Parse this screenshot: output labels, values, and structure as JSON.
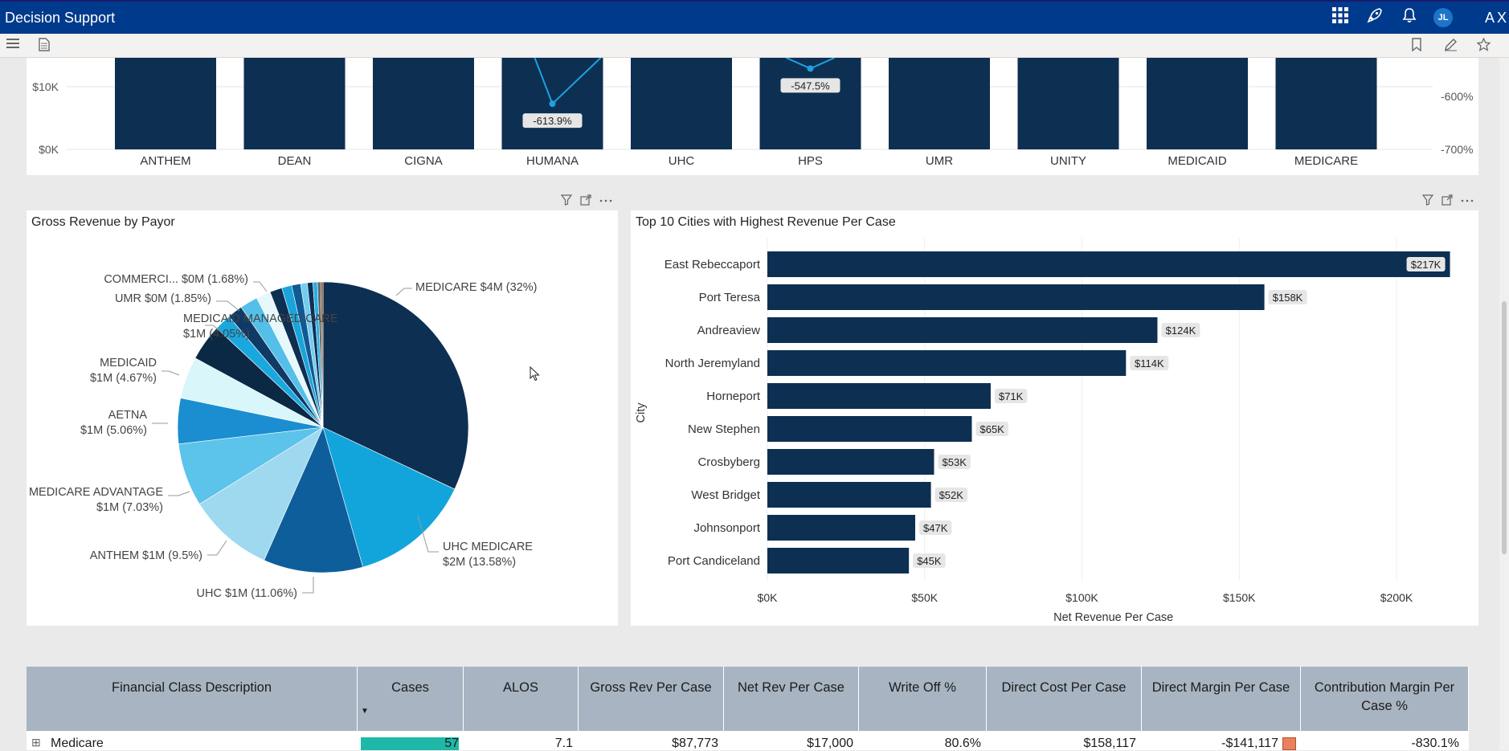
{
  "app": {
    "title": "Decision Support",
    "brand": "AXI",
    "user_initials": "JL"
  },
  "colors": {
    "navy": "#0d2f52",
    "topbar": "#003a8c",
    "accent_line": "#1da1e0",
    "table_header": "#a8b4c2",
    "cases_bar": "#1fb8a8"
  },
  "top_chart": {
    "y_left_ticks": [
      "$10K",
      "$0K"
    ],
    "y_right_ticks": [
      "-600%",
      "-700%"
    ],
    "categories": [
      "ANTHEM",
      "DEAN",
      "CIGNA",
      "HUMANA",
      "UHC",
      "HPS",
      "UMR",
      "UNITY",
      "MEDICAID",
      "MEDICARE"
    ],
    "line_labels": [
      "-613.9%",
      "-547.5%"
    ]
  },
  "pie": {
    "title": "Gross Revenue by Payor",
    "labels": [
      "MEDICARE $4M (32%)",
      "UHC MEDICARE",
      "$2M (13.58%)",
      "UHC $1M (11.06%)",
      "ANTHEM $1M (9.5%)",
      "MEDICARE ADVANTAGE",
      "$1M (7.03%)",
      "AETNA",
      "$1M (5.06%)",
      "MEDICAID",
      "$1M (4.67%)",
      "MEDICAID MANAGED CARE",
      "$1M (4.05%)",
      "UMR $0M (1.85%)",
      "COMMERCI... $0M (1.68%)"
    ]
  },
  "bar": {
    "title": "Top 10 Cities with Highest Revenue Per Case",
    "ylabel": "City",
    "xlabel": "Net Revenue Per Case",
    "x_ticks": [
      "$0K",
      "$50K",
      "$100K",
      "$150K",
      "$200K"
    ],
    "value_labels": [
      "$217K",
      "$158K",
      "$124K",
      "$114K",
      "$71K",
      "$65K",
      "$53K",
      "$52K",
      "$47K",
      "$45K"
    ]
  },
  "chart_data": [
    {
      "type": "bar",
      "title": "",
      "categories": [
        "ANTHEM",
        "DEAN",
        "CIGNA",
        "HUMANA",
        "UHC",
        "HPS",
        "UMR",
        "UNITY",
        "MEDICAID",
        "MEDICARE"
      ],
      "y_left_ticks": [
        "$0K",
        "$10K"
      ],
      "y_right_ticks": [
        "-700%",
        "-600%"
      ],
      "series": [
        {
          "type": "line",
          "points": [
            {
              "category": "HUMANA",
              "value": -613.9
            },
            {
              "category": "HPS",
              "value": -547.5
            }
          ]
        }
      ],
      "note_visible": "bars extend above the visible area"
    },
    {
      "type": "pie",
      "title": "Gross Revenue by Payor",
      "slices": [
        {
          "label": "MEDICARE",
          "value_text": "$4M",
          "percent": 32
        },
        {
          "label": "UHC MEDICARE",
          "value_text": "$2M",
          "percent": 13.58
        },
        {
          "label": "UHC",
          "value_text": "$1M",
          "percent": 11.06
        },
        {
          "label": "ANTHEM",
          "value_text": "$1M",
          "percent": 9.5
        },
        {
          "label": "MEDICARE ADVANTAGE",
          "value_text": "$1M",
          "percent": 7.03
        },
        {
          "label": "AETNA",
          "value_text": "$1M",
          "percent": 5.06
        },
        {
          "label": "MEDICAID",
          "value_text": "$1M",
          "percent": 4.67
        },
        {
          "label": "MEDICAID MANAGED CARE",
          "value_text": "$1M",
          "percent": 4.05
        },
        {
          "label": "UMR",
          "value_text": "$0M",
          "percent": 1.85
        },
        {
          "label": "COMMERCI...",
          "value_text": "$0M",
          "percent": 1.68
        }
      ]
    },
    {
      "type": "bar",
      "orientation": "horizontal",
      "title": "Top 10 Cities with Highest Revenue Per Case",
      "xlabel": "Net Revenue Per Case",
      "ylabel": "City",
      "xlim": [
        0,
        220000
      ],
      "categories": [
        "East Rebeccaport",
        "Port Teresa",
        "Andreaview",
        "North Jeremyland",
        "Horneport",
        "New Stephen",
        "Crosbyberg",
        "West Bridget",
        "Johnsonport",
        "Port Candiceland"
      ],
      "values": [
        217000,
        158000,
        124000,
        114000,
        71000,
        65000,
        53000,
        52000,
        47000,
        45000
      ]
    }
  ],
  "table": {
    "headers": [
      "Financial Class Description",
      "Cases",
      "ALOS",
      "Gross Rev Per Case",
      "Net Rev Per Case",
      "Write Off %",
      "Direct Cost Per Case",
      "Direct Margin Per Case",
      "Contribution Margin Per Case %"
    ],
    "sort_indicator": "▼",
    "rows": [
      {
        "expand": "⊞",
        "name": "Medicare",
        "cases": "57",
        "alos": "7.1",
        "gross": "$87,773",
        "net": "$17,000",
        "writeoff": "80.6%",
        "cost": "$158,117",
        "margin": "-$141,117",
        "contrib": "-830.1%"
      }
    ]
  }
}
